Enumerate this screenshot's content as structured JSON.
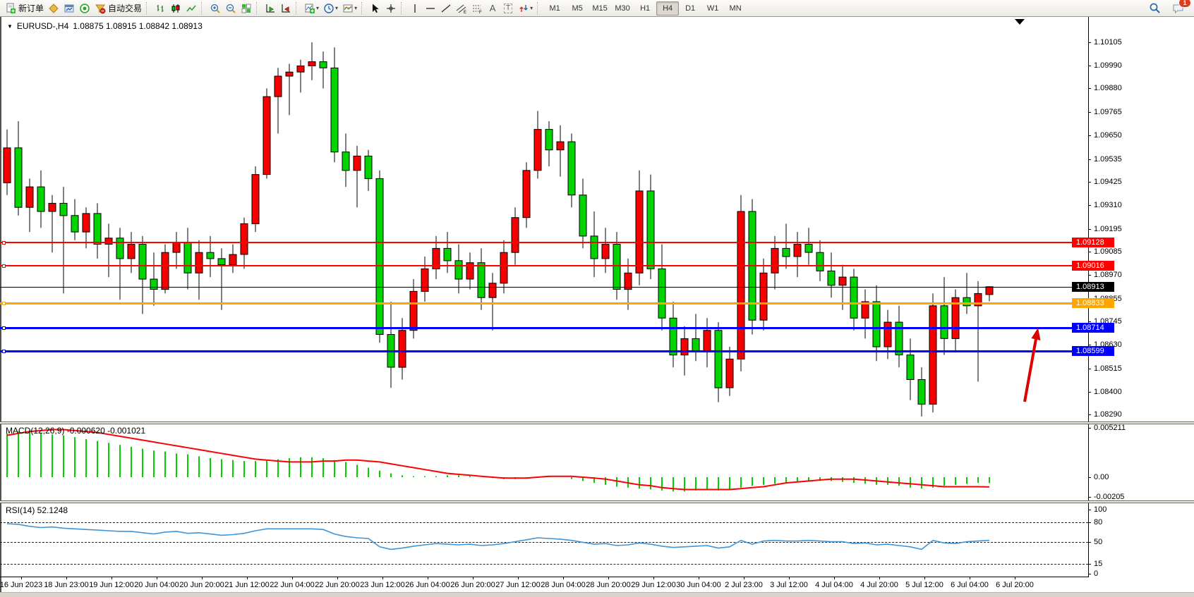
{
  "toolbar": {
    "new_order": "新订单",
    "auto_trading": "自动交易",
    "timeframes": [
      "M1",
      "M5",
      "M15",
      "M30",
      "H1",
      "H4",
      "D1",
      "W1",
      "MN"
    ],
    "active_timeframe": "H4",
    "notification_count": "1"
  },
  "chart": {
    "symbol_title": "EURUSD-,H4",
    "ohlc_text": "1.08875 1.08915 1.08842 1.08913",
    "up_color": "#f60000",
    "down_color": "#00d300",
    "price_axis": [
      "1.10105",
      "1.09990",
      "1.09880",
      "1.09765",
      "1.09650",
      "1.09535",
      "1.09425",
      "1.09310",
      "1.09195",
      "1.09085",
      "1.08970",
      "1.08855",
      "1.08745",
      "1.08630",
      "1.08515",
      "1.08400",
      "1.08290"
    ],
    "time_axis": [
      "16 Jun 2023",
      "18 Jun 23:00",
      "19 Jun 12:00",
      "20 Jun 04:00",
      "20 Jun 20:00",
      "21 Jun 12:00",
      "22 Jun 04:00",
      "22 Jun 20:00",
      "23 Jun 12:00",
      "26 Jun 04:00",
      "26 Jun 20:00",
      "27 Jun 12:00",
      "28 Jun 04:00",
      "28 Jun 20:00",
      "29 Jun 12:00",
      "30 Jun 04:00",
      "2 Jul 23:00",
      "3 Jul 12:00",
      "4 Jul 04:00",
      "4 Jul 20:00",
      "5 Jul 12:00",
      "6 Jul 04:00",
      "6 Jul 20:00"
    ],
    "lines": [
      {
        "label": "1.09128",
        "price": 1.09128,
        "color": "#ff0000",
        "thickness": 2,
        "handles": true
      },
      {
        "label": "1.09016",
        "price": 1.09016,
        "color": "#ff0000",
        "thickness": 2,
        "handles": true
      },
      {
        "label": "1.08913",
        "price": 1.08913,
        "color": "#000000",
        "thickness": 1,
        "handles": false
      },
      {
        "label": "1.08833",
        "price": 1.08833,
        "color": "#ffa500",
        "thickness": 3,
        "handles": true
      },
      {
        "label": "1.08714",
        "price": 1.08714,
        "color": "#0000ff",
        "thickness": 3,
        "handles": true
      },
      {
        "label": "1.08599",
        "price": 1.08599,
        "color": "#0000ff",
        "thickness": 3,
        "handles": true
      }
    ],
    "current_price": "1.08913"
  },
  "macd": {
    "label": "MACD(12,26,9) -0.000620 -0.001021",
    "main_value": "-0.000620",
    "signal_value": "-0.001021",
    "axis": [
      "0.005211",
      "0.00",
      "-0.00205"
    ],
    "hist_color": "#00cf00",
    "signal_color": "#ff0000"
  },
  "rsi": {
    "label": "RSI(14) 52.1248",
    "value": "52.1248",
    "levels": [
      "100",
      "80",
      "50",
      "15",
      "0"
    ],
    "dashed_levels": [
      80,
      50,
      15
    ],
    "line_color": "#3e95d8"
  },
  "annotation": {
    "arrow_color": "#dd0000"
  },
  "chart_data": {
    "type": "candlestick",
    "symbol": "EURUSD-",
    "timeframe": "H4",
    "title": "EURUSD-,H4 1.08875 1.08915 1.08842 1.08913",
    "ylim": [
      1.0829,
      1.10105
    ],
    "candles": [
      [
        1.0942,
        1.0968,
        1.0936,
        1.0959
      ],
      [
        1.0959,
        1.0972,
        1.0926,
        1.093
      ],
      [
        1.093,
        1.0944,
        1.0918,
        1.094
      ],
      [
        1.094,
        1.0948,
        1.092,
        1.0928
      ],
      [
        1.0928,
        1.0936,
        1.0908,
        1.0932
      ],
      [
        1.0932,
        1.094,
        1.0888,
        1.0926
      ],
      [
        1.0926,
        1.0934,
        1.0914,
        1.0918
      ],
      [
        1.0918,
        1.093,
        1.091,
        1.0927
      ],
      [
        1.0927,
        1.0932,
        1.0905,
        1.0912
      ],
      [
        1.0912,
        1.0922,
        1.0896,
        1.0915
      ],
      [
        1.0915,
        1.092,
        1.0885,
        1.0905
      ],
      [
        1.0905,
        1.0918,
        1.0898,
        1.0912
      ],
      [
        1.0912,
        1.0916,
        1.0878,
        1.0895
      ],
      [
        1.0895,
        1.0908,
        1.0882,
        1.089
      ],
      [
        1.089,
        1.0912,
        1.0888,
        1.0908
      ],
      [
        1.0908,
        1.0918,
        1.09,
        1.0913
      ],
      [
        1.0913,
        1.092,
        1.089,
        1.0898
      ],
      [
        1.0898,
        1.0914,
        1.0885,
        1.0908
      ],
      [
        1.0908,
        1.0916,
        1.0896,
        1.0905
      ],
      [
        1.0905,
        1.091,
        1.088,
        1.0902
      ],
      [
        1.0902,
        1.0912,
        1.0898,
        1.0907
      ],
      [
        1.0907,
        1.0925,
        1.09,
        1.0922
      ],
      [
        1.0922,
        1.095,
        1.0918,
        1.0946
      ],
      [
        1.0946,
        1.0988,
        1.0944,
        1.0984
      ],
      [
        1.0984,
        1.0998,
        1.0966,
        1.0994
      ],
      [
        1.0994,
        1.1,
        1.0975,
        1.0996
      ],
      [
        1.0996,
        1.1002,
        1.0986,
        1.0999
      ],
      [
        1.0999,
        1.10105,
        1.0992,
        1.1001
      ],
      [
        1.1001,
        1.1006,
        1.0988,
        1.0998
      ],
      [
        1.0998,
        1.1008,
        1.0952,
        1.0957
      ],
      [
        1.0957,
        1.0966,
        1.094,
        1.0948
      ],
      [
        1.0948,
        1.096,
        1.093,
        1.0955
      ],
      [
        1.0955,
        1.0958,
        1.0938,
        1.0944
      ],
      [
        1.0944,
        1.0948,
        1.0864,
        1.0868
      ],
      [
        1.0868,
        1.0884,
        1.0842,
        1.0852
      ],
      [
        1.0852,
        1.0876,
        1.0846,
        1.087
      ],
      [
        1.087,
        1.0895,
        1.0866,
        1.0889
      ],
      [
        1.0889,
        1.0906,
        1.0884,
        1.09
      ],
      [
        1.09,
        1.0916,
        1.0895,
        1.091
      ],
      [
        1.091,
        1.0918,
        1.0898,
        1.0904
      ],
      [
        1.0904,
        1.0912,
        1.0888,
        1.0895
      ],
      [
        1.0895,
        1.0908,
        1.089,
        1.0903
      ],
      [
        1.0903,
        1.091,
        1.088,
        1.0886
      ],
      [
        1.0886,
        1.0898,
        1.087,
        1.0893
      ],
      [
        1.0893,
        1.0914,
        1.0888,
        1.0908
      ],
      [
        1.0908,
        1.093,
        1.0902,
        1.0925
      ],
      [
        1.0925,
        1.0952,
        1.092,
        1.0948
      ],
      [
        1.0948,
        1.0977,
        1.0944,
        1.0968
      ],
      [
        1.0968,
        1.0972,
        1.095,
        1.0958
      ],
      [
        1.0958,
        1.097,
        1.0945,
        1.0962
      ],
      [
        1.0962,
        1.0966,
        1.093,
        1.0936
      ],
      [
        1.0936,
        1.0944,
        1.091,
        1.0916
      ],
      [
        1.0916,
        1.0928,
        1.0896,
        1.0905
      ],
      [
        1.0905,
        1.092,
        1.0898,
        1.0912
      ],
      [
        1.0912,
        1.0918,
        1.0885,
        1.089
      ],
      [
        1.089,
        1.0905,
        1.088,
        1.0898
      ],
      [
        1.0898,
        1.0948,
        1.0892,
        1.0938
      ],
      [
        1.0938,
        1.0946,
        1.0895,
        1.09
      ],
      [
        1.09,
        1.0912,
        1.087,
        1.0876
      ],
      [
        1.0876,
        1.0884,
        1.0852,
        1.0858
      ],
      [
        1.0858,
        1.0872,
        1.0848,
        1.0866
      ],
      [
        1.0866,
        1.0878,
        1.0855,
        1.086
      ],
      [
        1.086,
        1.0876,
        1.0852,
        1.087
      ],
      [
        1.087,
        1.0874,
        1.0835,
        1.0842
      ],
      [
        1.0842,
        1.0862,
        1.0838,
        1.0856
      ],
      [
        1.0856,
        1.0936,
        1.085,
        1.0928
      ],
      [
        1.0928,
        1.0934,
        1.0868,
        1.0875
      ],
      [
        1.0875,
        1.0905,
        1.087,
        1.0898
      ],
      [
        1.0898,
        1.0916,
        1.089,
        1.091
      ],
      [
        1.091,
        1.0922,
        1.09,
        1.0906
      ],
      [
        1.0906,
        1.0918,
        1.0896,
        1.0912
      ],
      [
        1.0912,
        1.092,
        1.0902,
        1.0908
      ],
      [
        1.0908,
        1.0914,
        1.0894,
        1.0899
      ],
      [
        1.0899,
        1.0908,
        1.0886,
        1.0892
      ],
      [
        1.0892,
        1.0902,
        1.088,
        1.0896
      ],
      [
        1.0896,
        1.09,
        1.087,
        1.0876
      ],
      [
        1.0876,
        1.089,
        1.0866,
        1.0884
      ],
      [
        1.0884,
        1.0892,
        1.0855,
        1.0862
      ],
      [
        1.0862,
        1.088,
        1.0856,
        1.0874
      ],
      [
        1.0874,
        1.0882,
        1.0852,
        1.0858
      ],
      [
        1.0858,
        1.0866,
        1.0836,
        1.0846
      ],
      [
        1.0846,
        1.0852,
        1.0828,
        1.0834
      ],
      [
        1.0834,
        1.0888,
        1.083,
        1.0882
      ],
      [
        1.0882,
        1.0896,
        1.0858,
        1.0866
      ],
      [
        1.0866,
        1.089,
        1.086,
        1.0886
      ],
      [
        1.0886,
        1.0898,
        1.0878,
        1.0882
      ],
      [
        1.0882,
        1.0894,
        1.0845,
        1.0888
      ],
      [
        1.08875,
        1.08915,
        1.08842,
        1.08913
      ]
    ],
    "macd_histogram": [
      0.0046,
      0.0048,
      0.0049,
      0.0047,
      0.0045,
      0.0044,
      0.0042,
      0.004,
      0.0038,
      0.0036,
      0.0034,
      0.0032,
      0.003,
      0.0028,
      0.0027,
      0.0025,
      0.0024,
      0.0022,
      0.002,
      0.0019,
      0.0018,
      0.0017,
      0.0017,
      0.0018,
      0.0019,
      0.002,
      0.0021,
      0.0021,
      0.002,
      0.0018,
      0.0016,
      0.0013,
      0.001,
      0.0007,
      0.0004,
      0.0002,
      0.0001,
      0.0001,
      0.0001,
      0.0002,
      0.0002,
      0.0001,
      0.0,
      -0.0001,
      -0.0002,
      -0.0002,
      -0.0001,
      0.0,
      0.0001,
      0.0,
      -0.0002,
      -0.0004,
      -0.0006,
      -0.0008,
      -0.001,
      -0.0011,
      -0.0012,
      -0.0013,
      -0.0014,
      -0.0015,
      -0.0015,
      -0.0014,
      -0.0013,
      -0.0014,
      -0.0013,
      -0.0011,
      -0.0009,
      -0.0008,
      -0.0007,
      -0.0006,
      -0.0005,
      -0.0004,
      -0.0004,
      -0.0004,
      -0.0005,
      -0.0006,
      -0.0007,
      -0.0008,
      -0.0008,
      -0.0009,
      -0.0011,
      -0.0012,
      -0.0011,
      -0.0009,
      -0.0008,
      -0.0007,
      -0.0006,
      -0.00062
    ],
    "macd_signal": [
      0.0044,
      0.0046,
      0.0048,
      0.0049,
      0.005,
      0.005,
      0.0049,
      0.0048,
      0.0047,
      0.0045,
      0.0043,
      0.0041,
      0.0039,
      0.0037,
      0.0035,
      0.0033,
      0.0031,
      0.0029,
      0.0027,
      0.0025,
      0.0023,
      0.0021,
      0.0019,
      0.0018,
      0.0017,
      0.0016,
      0.0016,
      0.0016,
      0.0017,
      0.0017,
      0.0018,
      0.0018,
      0.0017,
      0.0016,
      0.0014,
      0.0012,
      0.001,
      0.0008,
      0.0006,
      0.0004,
      0.0003,
      0.0002,
      0.0001,
      0.0,
      -0.0001,
      -0.0001,
      -0.0001,
      0.0,
      0.0001,
      0.0001,
      0.0001,
      0.0,
      -0.0001,
      -0.0002,
      -0.0004,
      -0.0006,
      -0.0008,
      -0.0009,
      -0.0011,
      -0.0012,
      -0.0013,
      -0.0013,
      -0.0013,
      -0.0013,
      -0.0013,
      -0.0012,
      -0.0011,
      -0.001,
      -0.0008,
      -0.0006,
      -0.0005,
      -0.0004,
      -0.0003,
      -0.0002,
      -0.0002,
      -0.0002,
      -0.0003,
      -0.0004,
      -0.0005,
      -0.0006,
      -0.0007,
      -0.0008,
      -0.0009,
      -0.001,
      -0.001,
      -0.001,
      -0.001,
      -0.001021
    ],
    "rsi": [
      78,
      77,
      74,
      72,
      73,
      71,
      70,
      69,
      68,
      67,
      66,
      66,
      64,
      62,
      65,
      66,
      63,
      64,
      62,
      60,
      61,
      63,
      67,
      70,
      70,
      70,
      70,
      70,
      69,
      62,
      58,
      56,
      55,
      42,
      38,
      40,
      43,
      45,
      47,
      46,
      45,
      46,
      44,
      45,
      47,
      50,
      53,
      56,
      55,
      54,
      52,
      49,
      46,
      47,
      44,
      45,
      48,
      46,
      43,
      41,
      42,
      43,
      44,
      40,
      42,
      52,
      46,
      51,
      52,
      51,
      51,
      52,
      51,
      50,
      50,
      47,
      48,
      45,
      46,
      44,
      42,
      38,
      52,
      48,
      47,
      50,
      51,
      52.1
    ]
  }
}
